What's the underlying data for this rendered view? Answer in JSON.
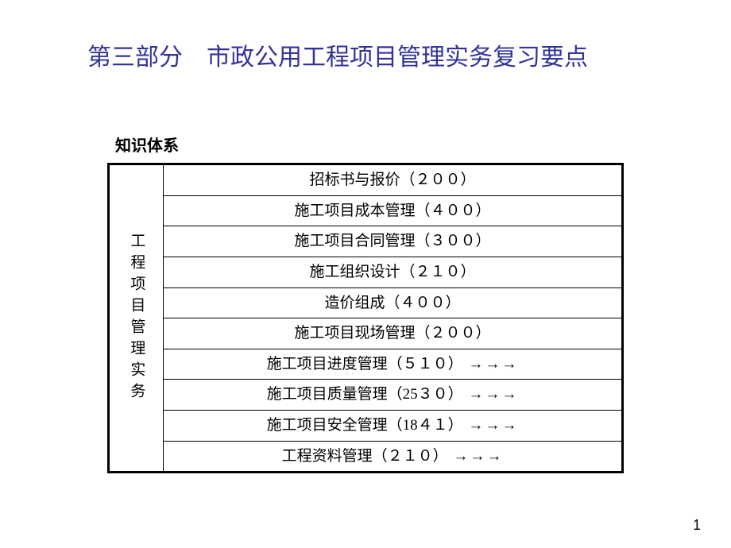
{
  "title": "第三部分　市政公用工程项目管理实务复习要点",
  "subtitle": "知识体系",
  "sideHeader": "工程项目管理实务",
  "rows": [
    {
      "label": "招标书与报价（２００）",
      "arrows": ""
    },
    {
      "label": "施工项目成本管理（４００）",
      "arrows": ""
    },
    {
      "label": "施工项目合同管理（３００）",
      "arrows": ""
    },
    {
      "label": "施工组织设计（２１０）",
      "arrows": ""
    },
    {
      "label": "造价组成（４００）",
      "arrows": ""
    },
    {
      "label": "施工项目现场管理（２００）",
      "arrows": ""
    },
    {
      "label": "施工项目进度管理（５１０）",
      "arrows": "→→→"
    },
    {
      "label": "施工项目质量管理（25３０）",
      "arrows": "→→→"
    },
    {
      "label": "施工项目安全管理（18４１）",
      "arrows": "→→→"
    },
    {
      "label": "工程资料管理（２１０）",
      "arrows": "→→→"
    }
  ],
  "pageNumber": "1"
}
